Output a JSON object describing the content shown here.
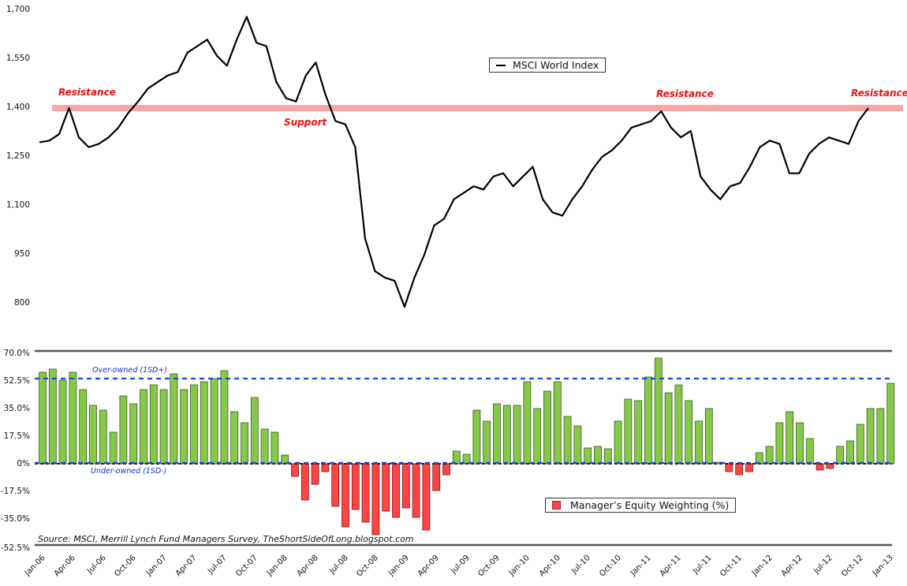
{
  "chart_data": [
    {
      "type": "line",
      "title": "MSCI World Index",
      "legend": [
        "MSCI World Index"
      ],
      "ylabel": "",
      "ylim": [
        750,
        1700
      ],
      "yticks": [
        "1,700",
        "1,550",
        "1,400",
        "1,250",
        "1,100",
        "950",
        "800"
      ],
      "annotations": [
        {
          "text": "Resistance",
          "x": "Apr-06",
          "y": 1400
        },
        {
          "text": "Support",
          "x": "Apr-08",
          "y": 1400
        },
        {
          "text": "Resistance",
          "x": "Apr-11",
          "y": 1400
        },
        {
          "text": "Resistance",
          "x": "Jan-13",
          "y": 1400
        }
      ],
      "horizontal_band": {
        "value": 1400,
        "color": "#f7a5a5"
      },
      "series": [
        {
          "name": "MSCI World Index",
          "x": [
            "Jan-06",
            "Feb-06",
            "Mar-06",
            "Apr-06",
            "May-06",
            "Jun-06",
            "Jul-06",
            "Aug-06",
            "Sep-06",
            "Oct-06",
            "Nov-06",
            "Dec-06",
            "Jan-07",
            "Feb-07",
            "Mar-07",
            "Apr-07",
            "May-07",
            "Jun-07",
            "Jul-07",
            "Aug-07",
            "Sep-07",
            "Oct-07",
            "Nov-07",
            "Dec-07",
            "Jan-08",
            "Feb-08",
            "Mar-08",
            "Apr-08",
            "May-08",
            "Jun-08",
            "Jul-08",
            "Aug-08",
            "Sep-08",
            "Oct-08",
            "Nov-08",
            "Dec-08",
            "Jan-09",
            "Feb-09",
            "Mar-09",
            "Apr-09",
            "May-09",
            "Jun-09",
            "Jul-09",
            "Aug-09",
            "Sep-09",
            "Oct-09",
            "Nov-09",
            "Dec-09",
            "Jan-10",
            "Feb-10",
            "Mar-10",
            "Apr-10",
            "May-10",
            "Jun-10",
            "Jul-10",
            "Aug-10",
            "Sep-10",
            "Oct-10",
            "Nov-10",
            "Dec-10",
            "Jan-11",
            "Feb-11",
            "Mar-11",
            "Apr-11",
            "May-11",
            "Jun-11",
            "Jul-11",
            "Aug-11",
            "Sep-11",
            "Oct-11",
            "Nov-11",
            "Dec-11",
            "Jan-12",
            "Feb-12",
            "Mar-12",
            "Apr-12",
            "May-12",
            "Jun-12",
            "Jul-12",
            "Aug-12",
            "Sep-12",
            "Oct-12",
            "Nov-12",
            "Dec-12",
            "Jan-13"
          ],
          "values": [
            1295,
            1300,
            1320,
            1400,
            1310,
            1280,
            1290,
            1310,
            1340,
            1385,
            1420,
            1460,
            1480,
            1500,
            1510,
            1570,
            1590,
            1610,
            1560,
            1530,
            1610,
            1680,
            1600,
            1590,
            1480,
            1430,
            1420,
            1500,
            1540,
            1440,
            1360,
            1350,
            1280,
            1000,
            900,
            880,
            870,
            790,
            880,
            950,
            1040,
            1060,
            1120,
            1140,
            1160,
            1150,
            1190,
            1200,
            1160,
            1190,
            1220,
            1120,
            1080,
            1070,
            1120,
            1160,
            1210,
            1250,
            1270,
            1300,
            1340,
            1350,
            1360,
            1390,
            1340,
            1310,
            1330,
            1190,
            1150,
            1120,
            1160,
            1170,
            1220,
            1280,
            1300,
            1290,
            1200,
            1200,
            1260,
            1290,
            1310,
            1300,
            1290,
            1360,
            1400
          ]
        }
      ]
    },
    {
      "type": "bar",
      "title": "Manager's Equity Weighting (%)",
      "legend": [
        "Manager’s Equity Weighting (%)"
      ],
      "ylim": [
        -52.5,
        70.0
      ],
      "yticks": [
        "70.0%",
        "52.5%",
        "35.0%",
        "17.5%",
        "0%",
        "-17.5%",
        "-35.0%",
        "-52.5%"
      ],
      "reference_lines": [
        {
          "label": "Over-owned (1SD+)",
          "value": 53.5,
          "color": "#1144ee",
          "style": "dashed"
        },
        {
          "label": "Under-owned (1SD-)",
          "value": 0.5,
          "color": "#1144ee",
          "style": "dashed"
        }
      ],
      "positive_color": "#86c94a",
      "negative_color": "#ff4444",
      "x_start": "Jan-06",
      "x_end": "Jan-13",
      "values": [
        58,
        60,
        53,
        58,
        47,
        37,
        34,
        20,
        43,
        38,
        47,
        50,
        47,
        57,
        47,
        50,
        52,
        54,
        59,
        33,
        26,
        42,
        22,
        20,
        5.5,
        -8,
        -23,
        -13,
        -5,
        -27,
        -40,
        -29,
        -37,
        -45,
        -30,
        -34,
        -28,
        -34,
        -42,
        -17,
        -7,
        8,
        6,
        34,
        27,
        38,
        37,
        37,
        52,
        35,
        46,
        52,
        30,
        24,
        10,
        11,
        9.5,
        27,
        41,
        40,
        55,
        67,
        45,
        50,
        40,
        27,
        35,
        1,
        -5,
        -7,
        -5,
        7,
        11,
        26,
        33,
        26,
        16,
        -4,
        -3,
        11,
        14.5,
        25,
        35,
        35,
        51
      ]
    }
  ],
  "xticks": [
    "Jan-06",
    "Apr-06",
    "Jul-06",
    "Oct-06",
    "Jan-07",
    "Apr-07",
    "Jul-07",
    "Oct-07",
    "Jan-08",
    "Apr-08",
    "Jul-08",
    "Oct-08",
    "Jan-09",
    "Apr-09",
    "Jul-09",
    "Oct-09",
    "Jan-10",
    "Apr-10",
    "Jul-10",
    "Oct-10",
    "Jan-11",
    "Apr-11",
    "Jul-11",
    "Oct-11",
    "Jan-12",
    "Apr-12",
    "Jul-12",
    "Oct-12",
    "Jan-13"
  ],
  "labels": {
    "legend_top": "MSCI World Index",
    "legend_bottom": "Manager’s Equity Weighting (%)",
    "resistance": "Resistance",
    "support": "Support",
    "over_owned": "Over-owned (1SD+)",
    "under_owned": "Under-owned (1SD-)",
    "source": "Source: MSCI, Merrill Lynch Fund Managers Survey, TheShortSideOfLong.blogspot.com"
  },
  "colors": {
    "line": "#000000",
    "band": "#f7a5a5",
    "annotation": "#ee1111",
    "bar_pos": "#86c94a",
    "bar_pos_border": "#3a5a1a",
    "bar_neg": "#ff4444",
    "bar_neg_border": "#7a1a1a",
    "ref_line": "#1144ee"
  }
}
